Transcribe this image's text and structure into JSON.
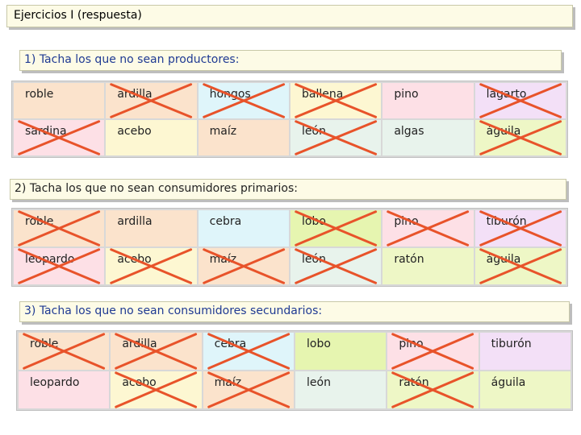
{
  "title": "Ejercicios I (respuesta)",
  "colors": {
    "accent_text": "#1f3a93",
    "cross": "#e8532a",
    "cell_pink": "#fde0e6",
    "cell_peach": "#fbe3cc",
    "cell_cream": "#fdf7d2",
    "cell_cyan": "#dff5fa",
    "cell_mint": "#e8f3ec",
    "cell_lime": "#e6f5b0",
    "cell_lavender": "#f3e0f7",
    "cell_yellowgreen": "#eef7c6"
  },
  "exercises": [
    {
      "label": "1) Tacha los que no sean productores:",
      "header_color": "#1f3a93",
      "cells": [
        {
          "text": "roble",
          "bg": "#fbe3cc",
          "crossed": false
        },
        {
          "text": "ardilla",
          "bg": "#fbe3cc",
          "crossed": true
        },
        {
          "text": "hongos",
          "bg": "#dff5fa",
          "crossed": true
        },
        {
          "text": "ballena",
          "bg": "#fdf7d2",
          "crossed": true
        },
        {
          "text": "pino",
          "bg": "#fde0e6",
          "crossed": false
        },
        {
          "text": "lagarto",
          "bg": "#f3e0f7",
          "crossed": true
        },
        {
          "text": "sardina",
          "bg": "#fde0e6",
          "crossed": true
        },
        {
          "text": "acebo",
          "bg": "#fdf7d2",
          "crossed": false
        },
        {
          "text": "maíz",
          "bg": "#fbe3cc",
          "crossed": false
        },
        {
          "text": "león",
          "bg": "#e8f3ec",
          "crossed": true
        },
        {
          "text": "algas",
          "bg": "#e8f3ec",
          "crossed": false
        },
        {
          "text": "águila",
          "bg": "#eef7c6",
          "crossed": true
        }
      ]
    },
    {
      "label": "2) Tacha los que no sean consumidores primarios:",
      "header_color": "#222222",
      "cells": [
        {
          "text": "roble",
          "bg": "#fbe3cc",
          "crossed": true
        },
        {
          "text": "ardilla",
          "bg": "#fbe3cc",
          "crossed": false
        },
        {
          "text": "cebra",
          "bg": "#dff5fa",
          "crossed": false
        },
        {
          "text": "lobo",
          "bg": "#e6f5b0",
          "crossed": true
        },
        {
          "text": "pino",
          "bg": "#fde0e6",
          "crossed": true
        },
        {
          "text": "tiburón",
          "bg": "#f3e0f7",
          "crossed": true
        },
        {
          "text": "leopardo",
          "bg": "#fde0e6",
          "crossed": true
        },
        {
          "text": "acebo",
          "bg": "#fdf7d2",
          "crossed": true
        },
        {
          "text": "maíz",
          "bg": "#fbe3cc",
          "crossed": true
        },
        {
          "text": "león",
          "bg": "#e8f3ec",
          "crossed": true
        },
        {
          "text": "ratón",
          "bg": "#eef7c6",
          "crossed": false
        },
        {
          "text": "águila",
          "bg": "#eef7c6",
          "crossed": true
        }
      ]
    },
    {
      "label": "3) Tacha los que no sean consumidores secundarios:",
      "header_color": "#1f3a93",
      "cells": [
        {
          "text": "roble",
          "bg": "#fbe3cc",
          "crossed": true
        },
        {
          "text": "ardilla",
          "bg": "#fbe3cc",
          "crossed": true
        },
        {
          "text": "cebra",
          "bg": "#dff5fa",
          "crossed": true
        },
        {
          "text": "lobo",
          "bg": "#e6f5b0",
          "crossed": false
        },
        {
          "text": "pino",
          "bg": "#fde0e6",
          "crossed": true
        },
        {
          "text": "tiburón",
          "bg": "#f3e0f7",
          "crossed": false
        },
        {
          "text": "leopardo",
          "bg": "#fde0e6",
          "crossed": false
        },
        {
          "text": "acebo",
          "bg": "#fdf7d2",
          "crossed": true
        },
        {
          "text": "maíz",
          "bg": "#fbe3cc",
          "crossed": true
        },
        {
          "text": "león",
          "bg": "#e8f3ec",
          "crossed": false
        },
        {
          "text": "ratón",
          "bg": "#eef7c6",
          "crossed": true
        },
        {
          "text": "águila",
          "bg": "#eef7c6",
          "crossed": false
        }
      ]
    }
  ]
}
